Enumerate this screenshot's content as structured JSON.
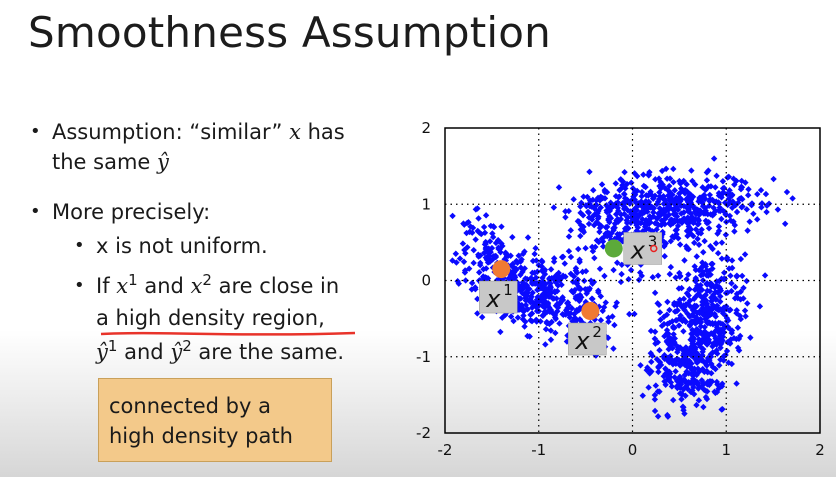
{
  "title": "Smoothness Assumption",
  "bullets": {
    "b1_text": "Assumption: “similar”",
    "b1_x": "x",
    "b1_rest": "has",
    "b1_line2a": "the same",
    "b1_yhat": "ŷ",
    "b2": "More precisely:",
    "b3": "x is not uniform.",
    "b4_if": "If",
    "b4_x1": "x",
    "b4_sup1": "1",
    "b4_and": "and",
    "b4_x2": "x",
    "b4_sup2": "2",
    "b4_rest": "are close in",
    "b4_line2": "a high density region,",
    "b4_y1": "ŷ",
    "b4_y1sup": "1",
    "b4_and2": "and",
    "b4_y2": "ŷ",
    "b4_y2sup": "2",
    "b4_end": "are the same."
  },
  "callout": {
    "line1": "connected by a",
    "line2": "high density path"
  },
  "chart_data": {
    "type": "scatter",
    "xlim": [
      -2,
      2
    ],
    "ylim": [
      -2,
      2
    ],
    "xticks": [
      "-2",
      "-1",
      "0",
      "1",
      "2"
    ],
    "yticks": [
      "2",
      "1",
      "0",
      "-1",
      "-2"
    ],
    "grid": true,
    "cluster_color": "#0a0aff",
    "highlight_points": [
      {
        "label": "x",
        "sup": "1",
        "x": -1.4,
        "y": 0.15,
        "color": "#f07a32"
      },
      {
        "label": "x",
        "sup": "2",
        "x": -0.45,
        "y": -0.4,
        "color": "#f07a32"
      },
      {
        "label": "x",
        "sup": "3",
        "x": -0.2,
        "y": 0.42,
        "color": "#5caa3a"
      }
    ]
  }
}
